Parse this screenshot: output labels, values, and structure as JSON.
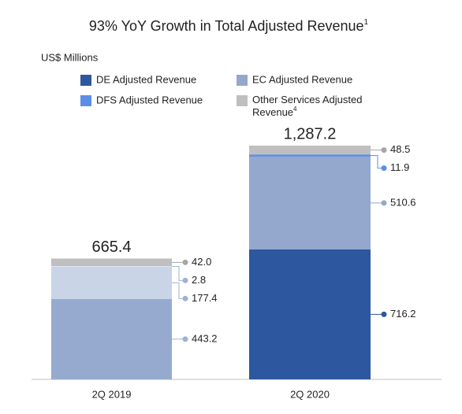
{
  "chart_data": {
    "type": "stacked-bar",
    "title": "93% YoY Growth in Total Adjusted Revenue",
    "title_note": "1",
    "subtitle": "US$ Millions",
    "categories": [
      "2Q 2019",
      "2Q 2020"
    ],
    "series": [
      {
        "name": "DE Adjusted Revenue",
        "color": "#2d579e",
        "point_colors": [
          "#96aacf",
          "#2d579e"
        ],
        "values": [
          443.2,
          716.2
        ],
        "value_labels": [
          "443.2",
          "716.2"
        ]
      },
      {
        "name": "EC Adjusted Revenue",
        "color": "#93a8cc",
        "point_colors": [
          "#c9d4e7",
          "#93a8cc"
        ],
        "values": [
          177.4,
          510.6
        ],
        "value_labels": [
          "177.4",
          "510.6"
        ]
      },
      {
        "name": "DFS Adjusted Revenue",
        "color": "#5b8ee6",
        "point_colors": [
          "#dfe8f7",
          "#5b8ee6"
        ],
        "values": [
          2.8,
          11.9
        ],
        "value_labels": [
          "2.8",
          "11.9"
        ]
      },
      {
        "name": "Other Services Adjusted Revenue",
        "name_note": "4",
        "color": "#bfbfbf",
        "point_colors": [
          "#bfbfbf",
          "#bfbfbf"
        ],
        "values": [
          42.0,
          48.5
        ],
        "value_labels": [
          "42.0",
          "48.5"
        ]
      }
    ],
    "totals": [
      665.4,
      1287.2
    ],
    "total_labels": [
      "665.4",
      "1,287.2"
    ],
    "total_colors": [
      "#a6a6a6",
      "#222222"
    ]
  }
}
